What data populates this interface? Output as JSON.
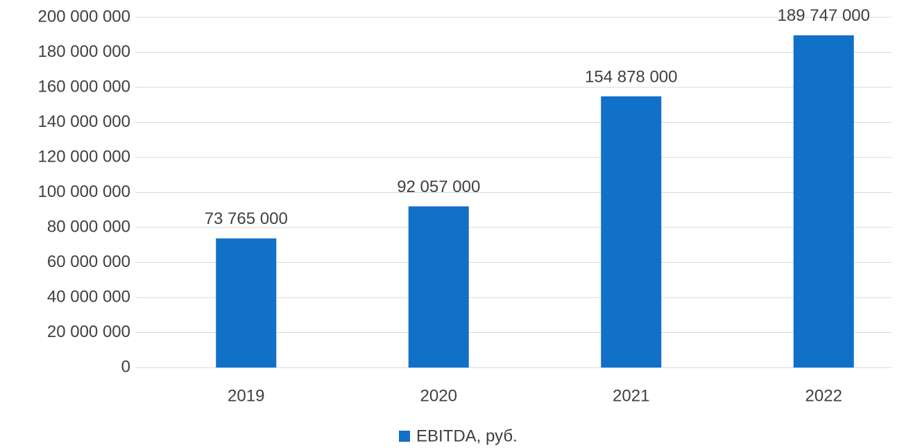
{
  "chart_data": {
    "type": "bar",
    "categories": [
      "2019",
      "2020",
      "2021",
      "2022"
    ],
    "series": [
      {
        "name": "EBITDA, руб.",
        "color": "#1170c8",
        "values": [
          73765000,
          92057000,
          154878000,
          189747000
        ],
        "value_labels": [
          "73 765 000",
          "92 057 000",
          "154 878 000",
          "189 747 000"
        ]
      }
    ],
    "ylim": [
      0,
      200000000
    ],
    "yticks": [
      {
        "value": 0,
        "label": "0"
      },
      {
        "value": 20000000,
        "label": "20 000 000"
      },
      {
        "value": 40000000,
        "label": "40 000 000"
      },
      {
        "value": 60000000,
        "label": "60 000 000"
      },
      {
        "value": 80000000,
        "label": "80 000 000"
      },
      {
        "value": 100000000,
        "label": "100 000 000"
      },
      {
        "value": 120000000,
        "label": "120 000 000"
      },
      {
        "value": 140000000,
        "label": "140 000 000"
      },
      {
        "value": 160000000,
        "label": "160 000 000"
      },
      {
        "value": 180000000,
        "label": "180 000 000"
      },
      {
        "value": 200000000,
        "label": "200 000 000"
      }
    ],
    "grid": true,
    "legend": "bottom"
  }
}
